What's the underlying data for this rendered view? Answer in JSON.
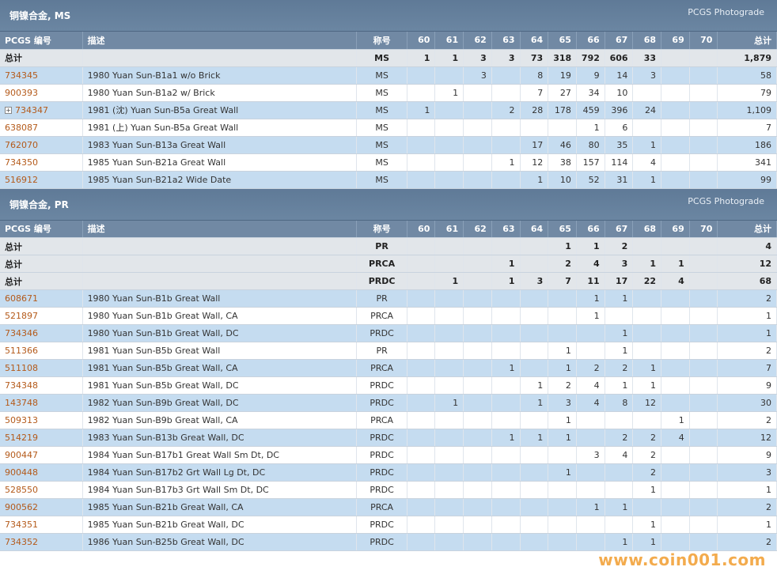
{
  "columns": [
    "PCGS 编号",
    "描述",
    "称号",
    "60",
    "61",
    "62",
    "63",
    "64",
    "65",
    "66",
    "67",
    "68",
    "69",
    "70",
    "总计"
  ],
  "sections": [
    {
      "title": "铜镍合金, MS",
      "photograde": "PCGS Photograde",
      "totals": [
        {
          "label": "总计",
          "designation": "MS",
          "grades": [
            "1",
            "1",
            "3",
            "3",
            "73",
            "318",
            "792",
            "606",
            "33",
            "",
            ""
          ],
          "total": "1,879"
        }
      ],
      "rows": [
        {
          "pcgs": "734345",
          "desc": "1980 Yuan Sun-B1a1 w/o Brick",
          "designation": "MS",
          "grades": [
            "",
            "",
            "3",
            "",
            "8",
            "19",
            "9",
            "14",
            "3",
            "",
            ""
          ],
          "total": "58"
        },
        {
          "pcgs": "900393",
          "desc": "1980 Yuan Sun-B1a2 w/ Brick",
          "designation": "MS",
          "grades": [
            "",
            "1",
            "",
            "",
            "7",
            "27",
            "34",
            "10",
            "",
            "",
            ""
          ],
          "total": "79"
        },
        {
          "pcgs": "734347",
          "desc": "1981 (沈) Yuan Sun-B5a Great Wall",
          "designation": "MS",
          "grades": [
            "1",
            "",
            "",
            "2",
            "28",
            "178",
            "459",
            "396",
            "24",
            "",
            ""
          ],
          "total": "1,109",
          "expandable": true
        },
        {
          "pcgs": "638087",
          "desc": "1981 (上) Yuan Sun-B5a Great Wall",
          "designation": "MS",
          "grades": [
            "",
            "",
            "",
            "",
            "",
            "",
            "1",
            "6",
            "",
            "",
            ""
          ],
          "total": "7"
        },
        {
          "pcgs": "762070",
          "desc": "1983 Yuan Sun-B13a Great Wall",
          "designation": "MS",
          "grades": [
            "",
            "",
            "",
            "",
            "17",
            "46",
            "80",
            "35",
            "1",
            "",
            ""
          ],
          "total": "186"
        },
        {
          "pcgs": "734350",
          "desc": "1985 Yuan Sun-B21a Great Wall",
          "designation": "MS",
          "grades": [
            "",
            "",
            "",
            "1",
            "12",
            "38",
            "157",
            "114",
            "4",
            "",
            ""
          ],
          "total": "341"
        },
        {
          "pcgs": "516912",
          "desc": "1985 Yuan Sun-B21a2 Wide Date",
          "designation": "MS",
          "grades": [
            "",
            "",
            "",
            "",
            "1",
            "10",
            "52",
            "31",
            "1",
            "",
            ""
          ],
          "total": "99"
        }
      ]
    },
    {
      "title": "铜镍合金, PR",
      "photograde": "PCGS Photograde",
      "totals": [
        {
          "label": "总计",
          "designation": "PR",
          "grades": [
            "",
            "",
            "",
            "",
            "",
            "1",
            "1",
            "2",
            "",
            "",
            ""
          ],
          "total": "4"
        },
        {
          "label": "总计",
          "designation": "PRCA",
          "grades": [
            "",
            "",
            "",
            "1",
            "",
            "2",
            "4",
            "3",
            "1",
            "1",
            ""
          ],
          "total": "12"
        },
        {
          "label": "总计",
          "designation": "PRDC",
          "grades": [
            "",
            "1",
            "",
            "1",
            "3",
            "7",
            "11",
            "17",
            "22",
            "4",
            ""
          ],
          "total": "68"
        }
      ],
      "rows": [
        {
          "pcgs": "608671",
          "desc": "1980 Yuan Sun-B1b Great Wall",
          "designation": "PR",
          "grades": [
            "",
            "",
            "",
            "",
            "",
            "",
            "1",
            "1",
            "",
            "",
            ""
          ],
          "total": "2"
        },
        {
          "pcgs": "521897",
          "desc": "1980 Yuan Sun-B1b Great Wall, CA",
          "designation": "PRCA",
          "grades": [
            "",
            "",
            "",
            "",
            "",
            "",
            "1",
            "",
            "",
            "",
            ""
          ],
          "total": "1"
        },
        {
          "pcgs": "734346",
          "desc": "1980 Yuan Sun-B1b Great Wall, DC",
          "designation": "PRDC",
          "grades": [
            "",
            "",
            "",
            "",
            "",
            "",
            "",
            "1",
            "",
            "",
            ""
          ],
          "total": "1"
        },
        {
          "pcgs": "511366",
          "desc": "1981 Yuan Sun-B5b Great Wall",
          "designation": "PR",
          "grades": [
            "",
            "",
            "",
            "",
            "",
            "1",
            "",
            "1",
            "",
            "",
            ""
          ],
          "total": "2"
        },
        {
          "pcgs": "511108",
          "desc": "1981 Yuan Sun-B5b Great Wall, CA",
          "designation": "PRCA",
          "grades": [
            "",
            "",
            "",
            "1",
            "",
            "1",
            "2",
            "2",
            "1",
            "",
            ""
          ],
          "total": "7"
        },
        {
          "pcgs": "734348",
          "desc": "1981 Yuan Sun-B5b Great Wall, DC",
          "designation": "PRDC",
          "grades": [
            "",
            "",
            "",
            "",
            "1",
            "2",
            "4",
            "1",
            "1",
            "",
            ""
          ],
          "total": "9"
        },
        {
          "pcgs": "143748",
          "desc": "1982 Yuan Sun-B9b Great Wall, DC",
          "designation": "PRDC",
          "grades": [
            "",
            "1",
            "",
            "",
            "1",
            "3",
            "4",
            "8",
            "12",
            "",
            ""
          ],
          "total": "30"
        },
        {
          "pcgs": "509313",
          "desc": "1982 Yuan Sun-B9b Great Wall, CA",
          "designation": "PRCA",
          "grades": [
            "",
            "",
            "",
            "",
            "",
            "1",
            "",
            "",
            "",
            "1",
            ""
          ],
          "total": "2"
        },
        {
          "pcgs": "514219",
          "desc": "1983 Yuan Sun-B13b Great Wall, DC",
          "designation": "PRDC",
          "grades": [
            "",
            "",
            "",
            "1",
            "1",
            "1",
            "",
            "2",
            "2",
            "4",
            ""
          ],
          "total": "12"
        },
        {
          "pcgs": "900447",
          "desc": "1984 Yuan Sun-B17b1 Great Wall Sm Dt, DC",
          "designation": "PRDC",
          "grades": [
            "",
            "",
            "",
            "",
            "",
            "",
            "3",
            "4",
            "2",
            "",
            ""
          ],
          "total": "9"
        },
        {
          "pcgs": "900448",
          "desc": "1984 Yuan Sun-B17b2 Grt Wall Lg Dt, DC",
          "designation": "PRDC",
          "grades": [
            "",
            "",
            "",
            "",
            "",
            "1",
            "",
            "",
            "2",
            "",
            ""
          ],
          "total": "3"
        },
        {
          "pcgs": "528550",
          "desc": "1984 Yuan Sun-B17b3 Grt Wall Sm Dt, DC",
          "designation": "PRDC",
          "grades": [
            "",
            "",
            "",
            "",
            "",
            "",
            "",
            "",
            "1",
            "",
            ""
          ],
          "total": "1"
        },
        {
          "pcgs": "900562",
          "desc": "1985 Yuan Sun-B21b Great Wall, CA",
          "designation": "PRCA",
          "grades": [
            "",
            "",
            "",
            "",
            "",
            "",
            "1",
            "1",
            "",
            "",
            ""
          ],
          "total": "2"
        },
        {
          "pcgs": "734351",
          "desc": "1985 Yuan Sun-B21b Great Wall, DC",
          "designation": "PRDC",
          "grades": [
            "",
            "",
            "",
            "",
            "",
            "",
            "",
            "",
            "1",
            "",
            ""
          ],
          "total": "1"
        },
        {
          "pcgs": "734352",
          "desc": "1986 Yuan Sun-B25b Great Wall, DC",
          "designation": "PRDC",
          "grades": [
            "",
            "",
            "",
            "",
            "",
            "",
            "",
            "1",
            "1",
            "",
            ""
          ],
          "total": "2"
        }
      ]
    }
  ],
  "watermark": "www.coin001.com",
  "colors": {
    "header": "#6b86a2",
    "row_highlight": "#c5dcf0",
    "link": "#b45a1a",
    "watermark": "#f2a23a"
  }
}
